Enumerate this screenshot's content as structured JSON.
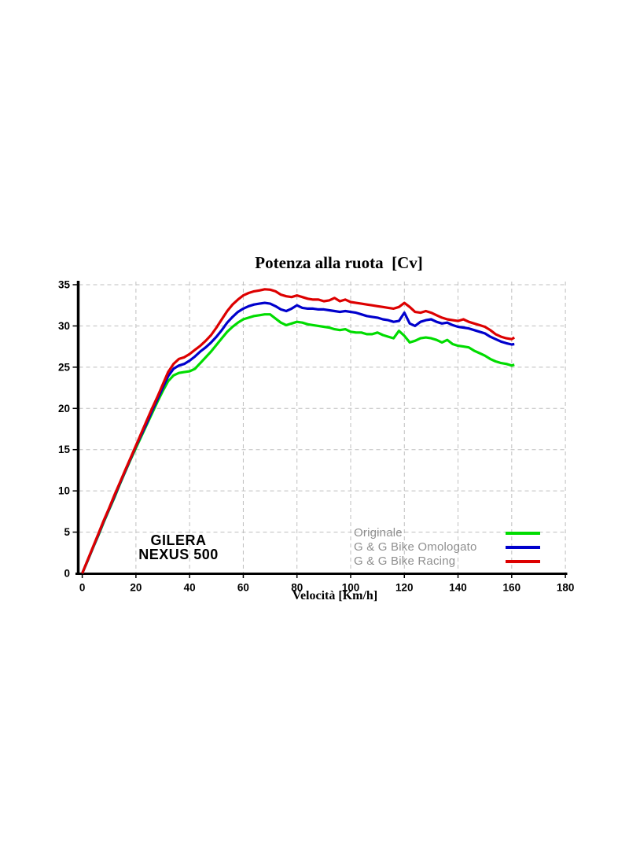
{
  "page": {
    "background": "#FFFFFF"
  },
  "chart_data": {
    "type": "line",
    "title": "Potenza alla ruota  [Cv]",
    "xlabel": "Velocità [Km/h]",
    "ylabel": "",
    "annotation": {
      "line1": "GILERA",
      "line2": "NEXUS 500"
    },
    "xlim": [
      0,
      180
    ],
    "ylim": [
      0,
      35
    ],
    "xticks": [
      0,
      20,
      40,
      60,
      80,
      100,
      120,
      140,
      160,
      180
    ],
    "yticks": [
      0,
      5,
      10,
      15,
      20,
      25,
      30,
      35
    ],
    "grid": "dashed-gray",
    "grid_color": "#BFBFBF",
    "axis_color": "#000000",
    "legend_position": "inside-bottom-right",
    "legend_text_color": "#8F8F8F",
    "x": [
      0,
      2,
      4,
      6,
      8,
      10,
      12,
      14,
      16,
      18,
      20,
      22,
      24,
      26,
      28,
      30,
      32,
      34,
      36,
      38,
      40,
      42,
      44,
      46,
      48,
      50,
      52,
      54,
      56,
      58,
      60,
      62,
      64,
      66,
      68,
      70,
      72,
      74,
      76,
      78,
      80,
      82,
      84,
      86,
      88,
      90,
      92,
      94,
      96,
      98,
      100,
      102,
      104,
      106,
      108,
      110,
      112,
      114,
      116,
      118,
      120,
      122,
      124,
      126,
      128,
      130,
      132,
      134,
      136,
      138,
      140,
      142,
      144,
      146,
      148,
      150,
      152,
      154,
      156,
      158,
      160,
      161
    ],
    "series": [
      {
        "name": "Originale",
        "color": "#00DC00",
        "values": [
          0,
          1.5,
          3.1,
          4.6,
          6.2,
          7.7,
          9.2,
          10.8,
          12.3,
          13.8,
          15.2,
          16.6,
          18.0,
          19.4,
          20.8,
          22.1,
          23.3,
          24.0,
          24.3,
          24.4,
          24.5,
          24.8,
          25.5,
          26.2,
          26.9,
          27.7,
          28.5,
          29.3,
          29.9,
          30.4,
          30.8,
          31.0,
          31.2,
          31.3,
          31.4,
          31.4,
          30.9,
          30.4,
          30.1,
          30.3,
          30.5,
          30.4,
          30.2,
          30.1,
          30.0,
          29.9,
          29.8,
          29.6,
          29.5,
          29.6,
          29.3,
          29.2,
          29.2,
          29.0,
          29.0,
          29.2,
          28.9,
          28.7,
          28.5,
          29.4,
          28.8,
          28.0,
          28.2,
          28.5,
          28.6,
          28.5,
          28.3,
          28.0,
          28.3,
          27.8,
          27.6,
          27.5,
          27.4,
          27.0,
          26.7,
          26.4,
          26.0,
          25.7,
          25.5,
          25.4,
          25.2,
          25.3
        ]
      },
      {
        "name": "G & G Bike Omologato",
        "color": "#0000CC",
        "values": [
          0,
          1.55,
          3.15,
          4.7,
          6.3,
          7.8,
          9.35,
          10.9,
          12.4,
          13.9,
          15.4,
          16.8,
          18.2,
          19.7,
          21.1,
          22.5,
          23.9,
          24.8,
          25.2,
          25.4,
          25.8,
          26.3,
          26.9,
          27.4,
          28.0,
          28.7,
          29.5,
          30.4,
          31.1,
          31.7,
          32.1,
          32.4,
          32.6,
          32.7,
          32.8,
          32.7,
          32.4,
          32.0,
          31.8,
          32.1,
          32.5,
          32.2,
          32.1,
          32.1,
          32.0,
          32.0,
          31.9,
          31.8,
          31.7,
          31.8,
          31.7,
          31.6,
          31.4,
          31.2,
          31.1,
          31.0,
          30.8,
          30.7,
          30.5,
          30.6,
          31.6,
          30.3,
          30.0,
          30.5,
          30.7,
          30.8,
          30.5,
          30.3,
          30.4,
          30.1,
          29.9,
          29.8,
          29.7,
          29.5,
          29.3,
          29.1,
          28.7,
          28.4,
          28.1,
          27.9,
          27.75,
          27.8
        ]
      },
      {
        "name": "G & G Bike Racing",
        "color": "#DD0000",
        "values": [
          0,
          1.6,
          3.2,
          4.8,
          6.4,
          7.9,
          9.5,
          11.0,
          12.5,
          14.0,
          15.5,
          17.0,
          18.5,
          20.0,
          21.4,
          22.9,
          24.4,
          25.4,
          26.0,
          26.2,
          26.6,
          27.1,
          27.6,
          28.2,
          28.9,
          29.8,
          30.8,
          31.8,
          32.6,
          33.2,
          33.7,
          34.0,
          34.2,
          34.3,
          34.45,
          34.4,
          34.2,
          33.8,
          33.6,
          33.5,
          33.7,
          33.5,
          33.3,
          33.2,
          33.2,
          33.0,
          33.1,
          33.4,
          33.0,
          33.2,
          32.9,
          32.8,
          32.7,
          32.6,
          32.5,
          32.4,
          32.3,
          32.2,
          32.1,
          32.3,
          32.8,
          32.3,
          31.7,
          31.6,
          31.8,
          31.6,
          31.3,
          31.0,
          30.8,
          30.7,
          30.6,
          30.8,
          30.5,
          30.3,
          30.1,
          29.9,
          29.5,
          29.0,
          28.7,
          28.5,
          28.4,
          28.6
        ]
      }
    ]
  }
}
